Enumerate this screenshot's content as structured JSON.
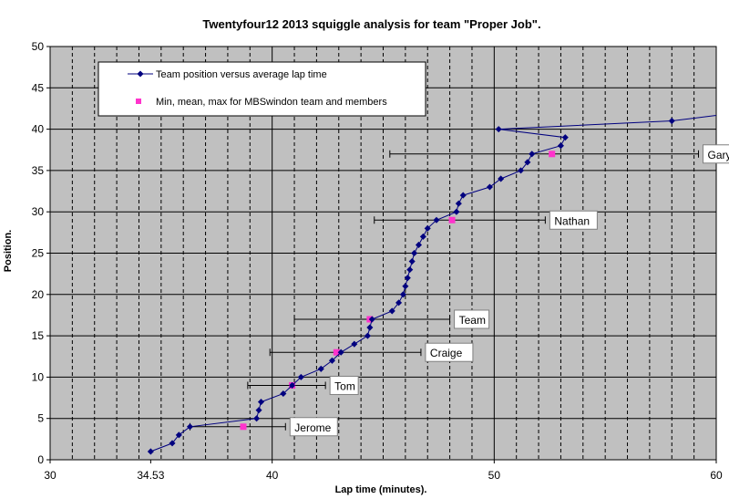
{
  "chart_data": {
    "type": "scatter",
    "title": "Twentyfour12 2013 squiggle analysis for team \"Proper Job\".",
    "xlabel": "Lap time (minutes).",
    "ylabel": "Position.",
    "xlim": [
      30,
      60
    ],
    "ylim": [
      0,
      50
    ],
    "x_ticks": [
      "30",
      "34.53",
      "40",
      "50",
      "60"
    ],
    "y_ticks": [
      "0",
      "5",
      "10",
      "15",
      "20",
      "25",
      "30",
      "35",
      "40",
      "45",
      "50"
    ],
    "grid": true,
    "legend_placement": "top-left",
    "colors": {
      "plot_bg": "#c0c0c0",
      "series_line": "#00007f",
      "marker_pink": "#ff33cc",
      "grid_line": "#000000"
    },
    "series": [
      {
        "name": "Team position versus average lap time",
        "points": [
          [
            34.53,
            1
          ],
          [
            35.5,
            2
          ],
          [
            35.8,
            3
          ],
          [
            36.3,
            4
          ],
          [
            39.3,
            5
          ],
          [
            39.4,
            6
          ],
          [
            39.5,
            7
          ],
          [
            40.5,
            8
          ],
          [
            40.9,
            9
          ],
          [
            41.3,
            10
          ],
          [
            42.2,
            11
          ],
          [
            42.7,
            12
          ],
          [
            43.1,
            13
          ],
          [
            43.7,
            14
          ],
          [
            44.3,
            15
          ],
          [
            44.4,
            16
          ],
          [
            44.5,
            17
          ],
          [
            45.4,
            18
          ],
          [
            45.7,
            19
          ],
          [
            45.9,
            20
          ],
          [
            46.0,
            21
          ],
          [
            46.1,
            22
          ],
          [
            46.2,
            23
          ],
          [
            46.3,
            24
          ],
          [
            46.4,
            25
          ],
          [
            46.6,
            26
          ],
          [
            46.8,
            27
          ],
          [
            47.0,
            28
          ],
          [
            47.4,
            29
          ],
          [
            48.3,
            30
          ],
          [
            48.4,
            31
          ],
          [
            48.6,
            32
          ],
          [
            49.8,
            33
          ],
          [
            50.3,
            34
          ],
          [
            51.2,
            35
          ],
          [
            51.5,
            36
          ],
          [
            51.7,
            37
          ],
          [
            53.0,
            38
          ],
          [
            53.2,
            39
          ],
          [
            50.2,
            40
          ],
          [
            58.0,
            41
          ],
          [
            61.0,
            42
          ]
        ]
      },
      {
        "name": "Min, mean, max for MBSwindon team and members",
        "ranges": [
          {
            "label": "Jerome",
            "y": 4,
            "min": 36.3,
            "mean": 38.7,
            "max": 40.6
          },
          {
            "label": "Tom",
            "y": 9,
            "min": 38.9,
            "mean": 40.9,
            "max": 42.4
          },
          {
            "label": "Craige",
            "y": 13,
            "min": 39.9,
            "mean": 42.9,
            "max": 46.7
          },
          {
            "label": "Team",
            "y": 17,
            "min": 41.0,
            "mean": 44.4,
            "max": 48.0
          },
          {
            "label": "Nathan",
            "y": 29,
            "min": 44.6,
            "mean": 48.1,
            "max": 52.3
          },
          {
            "label": "Gary",
            "y": 37,
            "min": 45.3,
            "mean": 52.6,
            "max": 59.2
          }
        ]
      }
    ]
  }
}
